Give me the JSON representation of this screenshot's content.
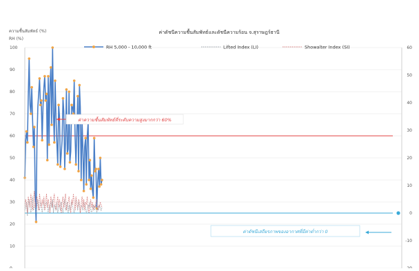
{
  "chart_data": {
    "type": "line",
    "title": "ค่าดัชนีความชื้นสัมพัทธ์และดัชนีความร้อน จ.สุราษฎร์ธานี",
    "corner_label": "ความชื้นสัมพัทธ์ (%)",
    "ylabel_left": "RH (%)",
    "ylabel_right": "",
    "left_axis": {
      "ylim": [
        0,
        100
      ],
      "ticks": [
        0,
        10,
        20,
        30,
        40,
        50,
        60,
        70,
        80,
        90,
        100
      ]
    },
    "right_axis": {
      "ylim": [
        -20,
        60
      ],
      "ticks": [
        -20,
        -10,
        0,
        10,
        20,
        30,
        40,
        50,
        60
      ]
    },
    "grid": true,
    "legend_position": "top",
    "series": [
      {
        "name": "RH 5,000 - 10,000 ft",
        "axis": "left",
        "color": "#4a7fc7",
        "marker_color": "#f0a446",
        "style": "solid",
        "values": [
          41,
          58,
          62,
          57,
          78,
          95,
          74,
          70,
          82,
          67,
          55,
          64,
          33,
          21,
          57,
          73,
          79,
          86,
          74,
          76,
          58,
          73,
          82,
          87,
          76,
          79,
          49,
          87,
          56,
          83,
          91,
          65,
          100,
          71,
          57,
          85,
          68,
          56,
          47,
          74,
          69,
          46,
          52,
          58,
          77,
          71,
          45,
          58,
          81,
          52,
          54,
          80,
          48,
          53,
          74,
          73,
          70,
          85,
          59,
          47,
          62,
          78,
          44,
          83,
          73,
          40,
          67,
          54,
          35,
          55,
          59,
          38,
          60,
          66,
          40,
          49,
          36,
          42,
          35,
          32,
          59,
          44,
          45,
          27,
          39,
          45,
          37,
          50,
          38,
          40
        ]
      },
      {
        "name": "Lifted Index (LI)",
        "axis": "right",
        "color": "#9aa0a8",
        "style": "dotted",
        "values": [
          1,
          2,
          4,
          -1,
          3,
          5,
          2,
          0,
          3,
          6,
          1,
          2,
          4,
          0,
          3,
          5,
          2,
          1,
          4,
          3,
          0,
          2,
          5,
          1,
          3,
          4,
          2,
          0,
          3,
          1,
          4,
          2,
          5,
          0,
          3,
          2,
          1,
          4,
          0,
          2,
          3,
          1,
          4,
          2,
          0,
          3,
          5,
          1,
          2,
          4,
          0,
          3,
          1,
          2,
          4,
          3,
          1,
          0,
          2,
          5,
          3,
          1,
          4,
          2,
          0,
          3,
          2,
          1,
          4,
          3,
          2,
          0,
          1,
          3,
          2,
          4,
          1,
          0,
          2,
          3,
          1,
          2,
          3,
          0,
          2,
          1,
          3,
          2,
          1,
          2
        ]
      },
      {
        "name": "Showalter Index (SI)",
        "axis": "right",
        "color": "#d67a7a",
        "style": "dotted",
        "values": [
          2,
          5,
          3,
          0,
          6,
          4,
          2,
          7,
          3,
          1,
          5,
          8,
          2,
          4,
          6,
          3,
          1,
          7,
          4,
          2,
          5,
          3,
          6,
          1,
          4,
          7,
          2,
          5,
          3,
          0,
          6,
          4,
          2,
          5,
          7,
          3,
          1,
          4,
          6,
          2,
          5,
          3,
          0,
          4,
          6,
          2,
          5,
          7,
          1,
          3,
          4,
          6,
          2,
          0,
          5,
          3,
          7,
          4,
          1,
          6,
          3,
          2,
          5,
          4,
          0,
          3,
          6,
          2,
          5,
          1,
          4,
          3,
          6,
          2,
          0,
          3,
          5,
          2,
          4,
          1,
          3,
          2,
          4,
          5,
          1,
          3,
          2,
          4,
          3,
          2
        ]
      }
    ],
    "reference_lines": [
      {
        "axis": "left",
        "value": 60,
        "color": "#e04040"
      },
      {
        "axis": "right",
        "value": 0,
        "color": "#3aaad8",
        "marker": true
      }
    ],
    "annotations": [
      "ค่าความชื้นสัมพัทธ์ที่ระดับความสูงมากกว่า 60%",
      "ค่าดัชนีเสถียรภาพของอากาศที่มีค่าต่ำกว่า 0"
    ]
  }
}
